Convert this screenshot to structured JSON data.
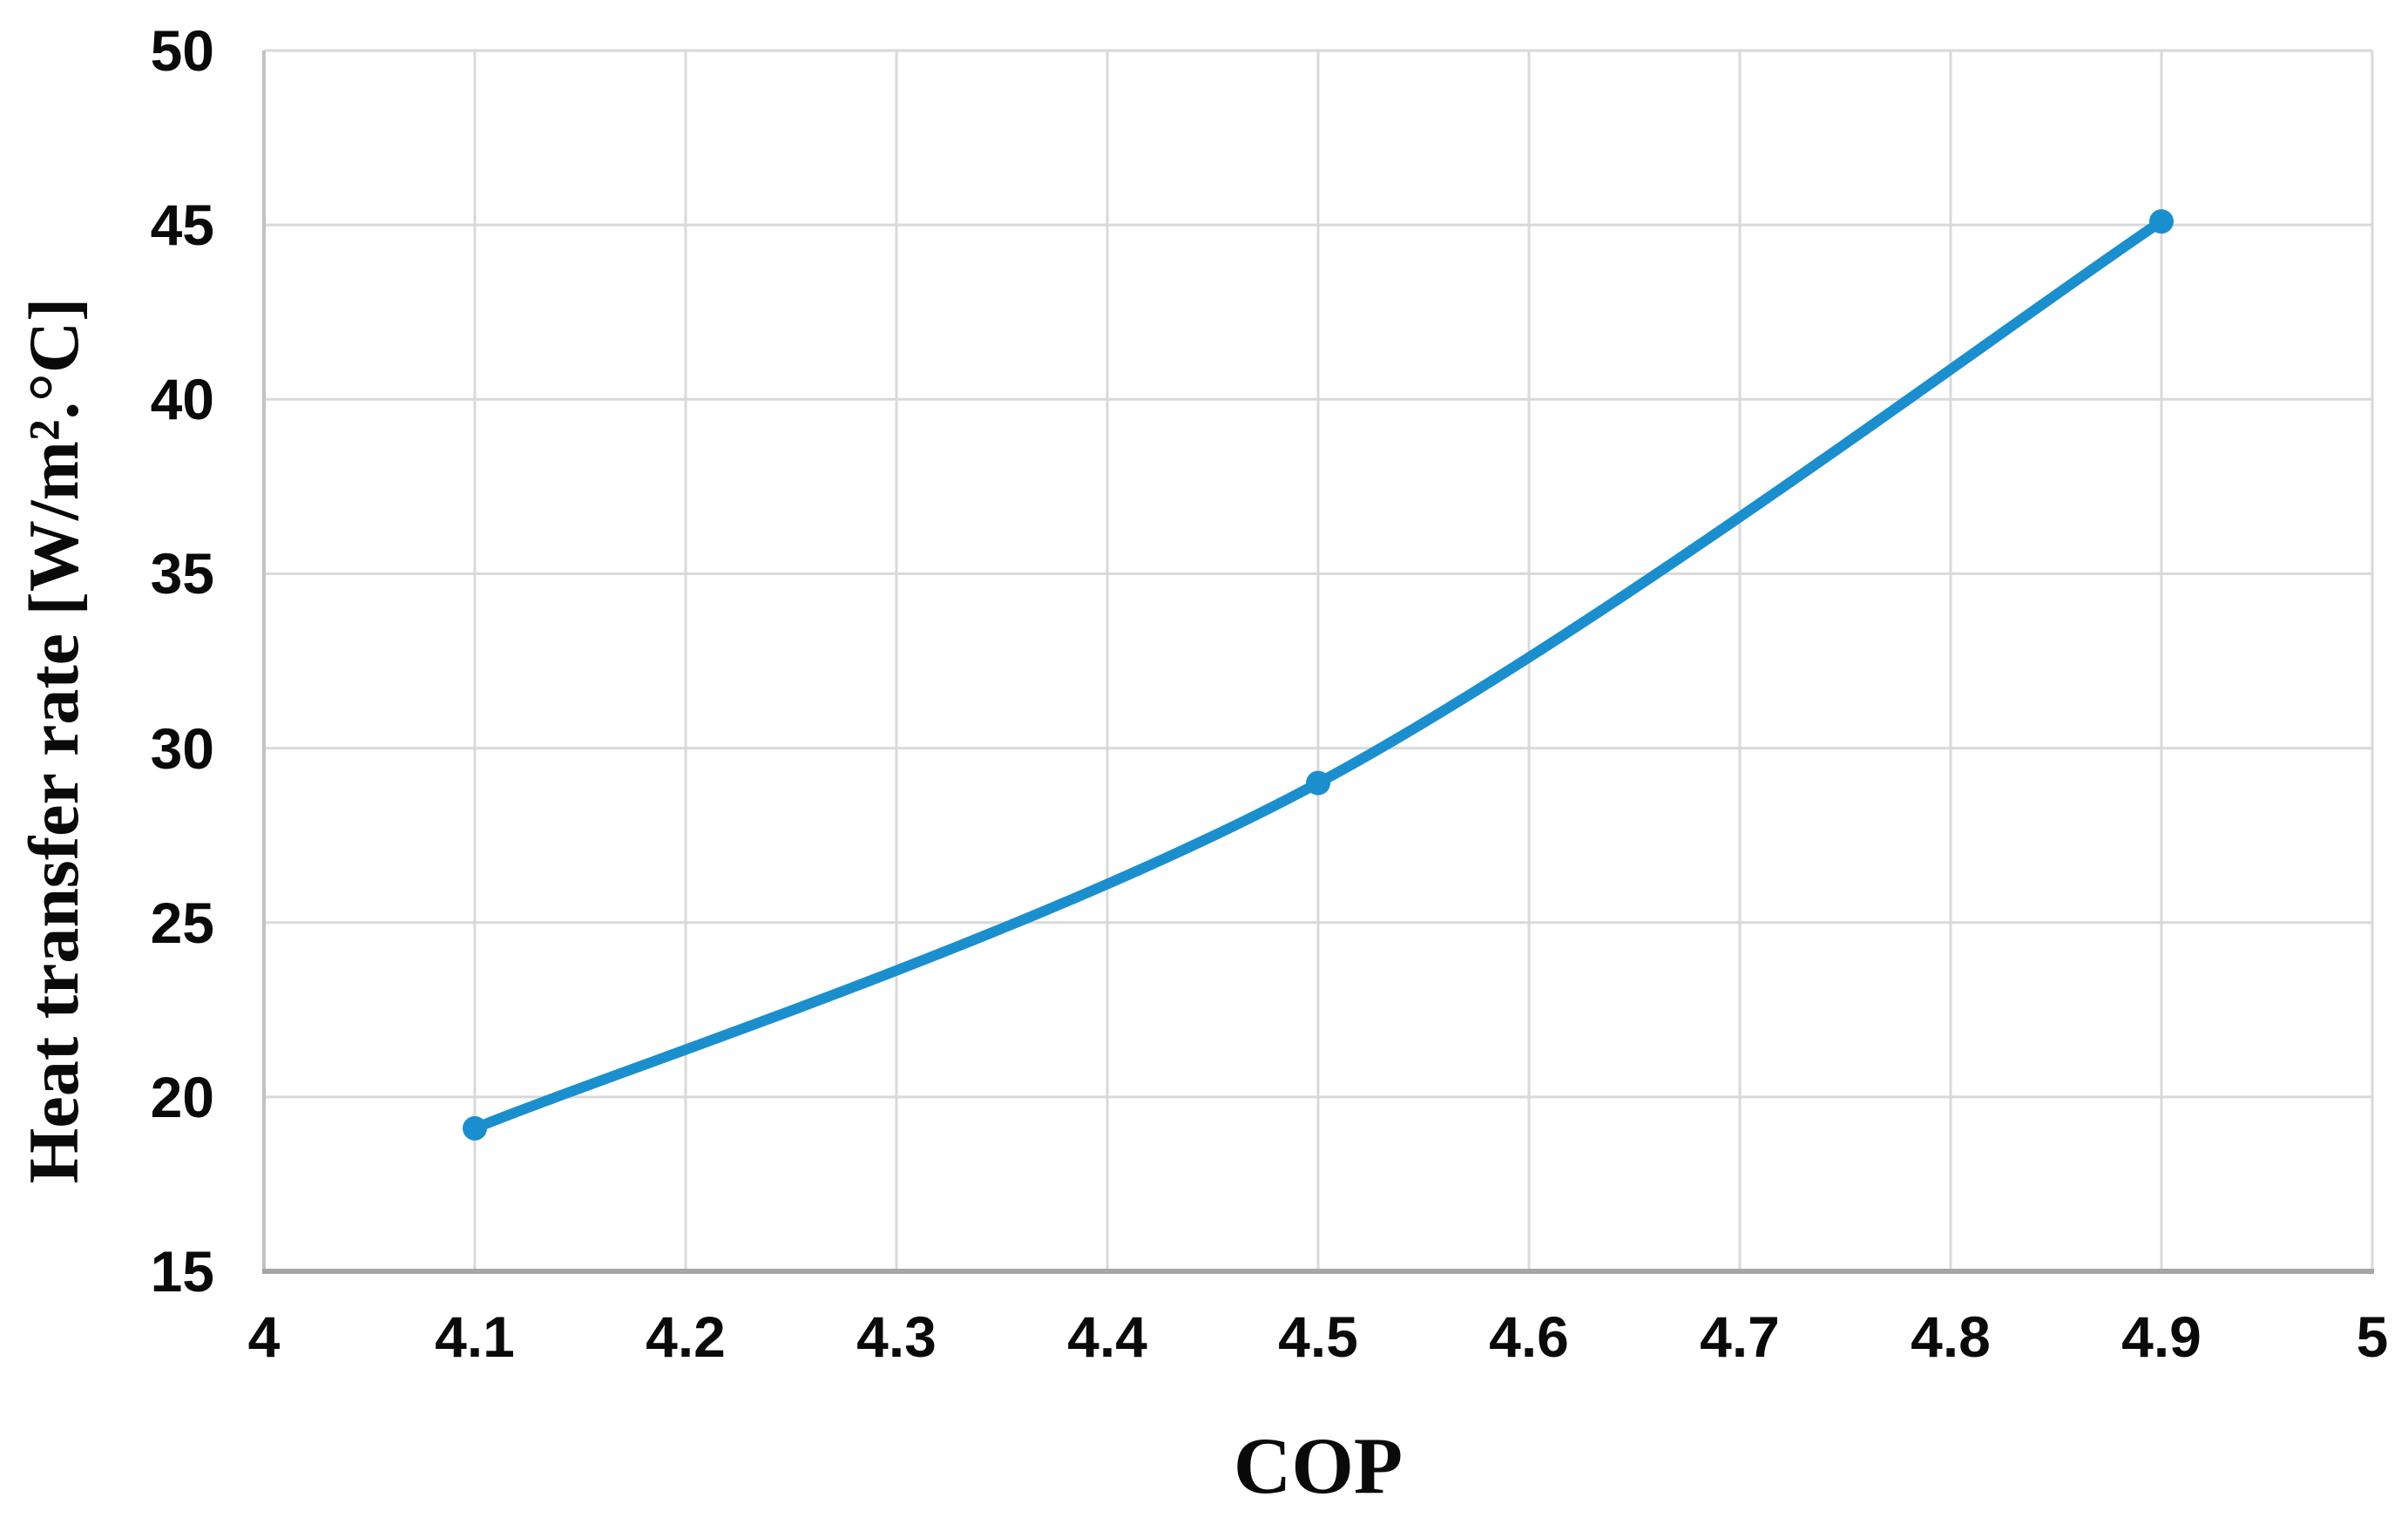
{
  "chart_data": {
    "type": "line",
    "title": "",
    "xlabel": "COP",
    "ylabel": "Heat transfer rate [W/m².°C]",
    "x": [
      4.1,
      4.5,
      4.9
    ],
    "y": [
      19.1,
      29.0,
      45.1
    ],
    "xlim": [
      4,
      5
    ],
    "ylim": [
      15,
      50
    ],
    "x_ticks": [
      4,
      4.1,
      4.2,
      4.3,
      4.4,
      4.5,
      4.6,
      4.7,
      4.8,
      4.9,
      5
    ],
    "x_tick_labels": [
      "4",
      "4.1",
      "4.2",
      "4.3",
      "4.4",
      "4.5",
      "4.6",
      "4.7",
      "4.8",
      "4.9",
      "5"
    ],
    "y_ticks": [
      15,
      20,
      25,
      30,
      35,
      40,
      45,
      50
    ],
    "y_tick_labels": [
      "15",
      "20",
      "25",
      "30",
      "35",
      "40",
      "45",
      "50"
    ],
    "grid": true,
    "legend": "none",
    "smooth": true,
    "marker": "circle",
    "line_color": "#1b8fce",
    "gridline_color": "#d9d9d9",
    "x_axis_color": "#a6a6a6",
    "y_axis_color": "#c2c2c2",
    "tick_color": "#0a0a0a",
    "background": "#ffffff"
  }
}
